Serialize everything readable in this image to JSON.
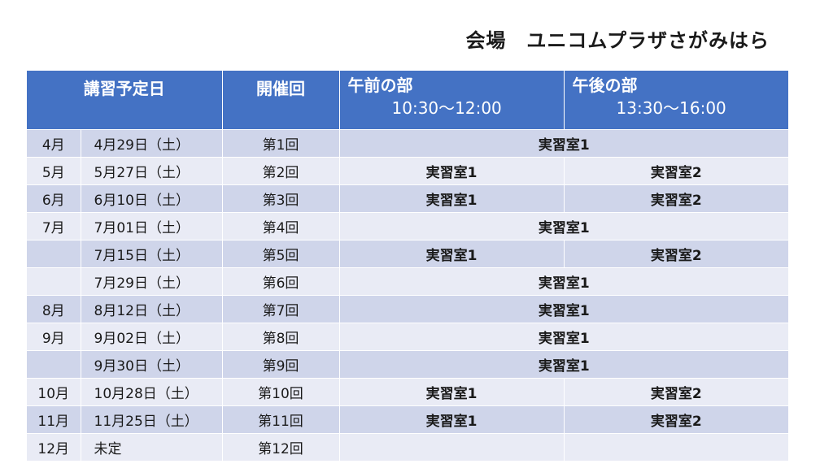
{
  "venue": "会場　ユニコムプラザさがみはら",
  "headers": {
    "date": "講習予定日",
    "session": "開催回",
    "am_label": "午前の部",
    "am_time": "10:30～12:00",
    "pm_label": "午後の部",
    "pm_time": "13:30～16:00"
  },
  "rows": [
    {
      "month": "4月",
      "date": "4月29日（土）",
      "session": "第1回",
      "merged": "実習室1"
    },
    {
      "month": "5月",
      "date": "5月27日（土）",
      "session": "第2回",
      "am": "実習室1",
      "pm": "実習室2"
    },
    {
      "month": "6月",
      "date": "6月10日（土）",
      "session": "第3回",
      "am": "実習室1",
      "pm": "実習室2"
    },
    {
      "month": "7月",
      "date": "7月01日（土）",
      "session": "第4回",
      "merged": "実習室1"
    },
    {
      "month": "",
      "date": "7月15日（土）",
      "session": "第5回",
      "am": "実習室1",
      "pm": "実習室2"
    },
    {
      "month": "",
      "date": "7月29日（土）",
      "session": "第6回",
      "merged": "実習室1"
    },
    {
      "month": "8月",
      "date": "8月12日（土）",
      "session": "第7回",
      "merged": "実習室1"
    },
    {
      "month": "9月",
      "date": "9月02日（土）",
      "session": "第8回",
      "merged": "実習室1"
    },
    {
      "month": "",
      "date": "9月30日（土）",
      "session": "第9回",
      "merged": "実習室1"
    },
    {
      "month": "10月",
      "date": "10月28日（土）",
      "session": "第10回",
      "am": "実習室1",
      "pm": "実習室2"
    },
    {
      "month": "11月",
      "date": "11月25日（土）",
      "session": "第11回",
      "am": "実習室1",
      "pm": "実習室2"
    },
    {
      "month": "12月",
      "date": "未定",
      "session": "第12回",
      "am": "",
      "pm": ""
    }
  ]
}
